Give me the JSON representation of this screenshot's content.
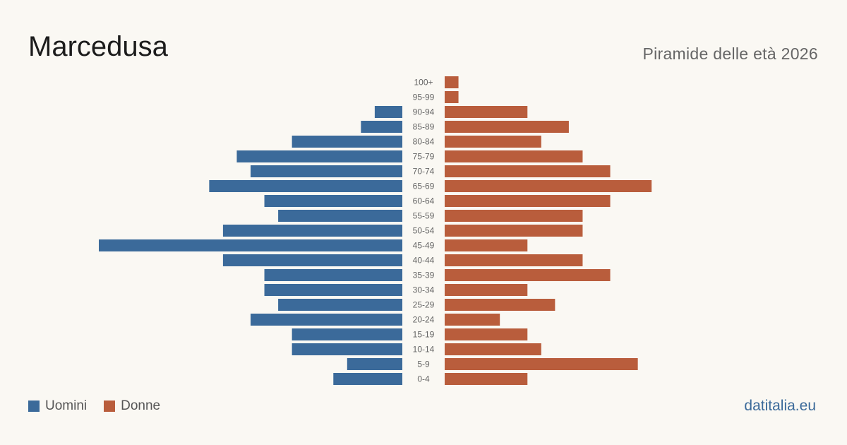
{
  "header": {
    "title": "Marcedusa",
    "subtitle": "Piramide delle età 2026"
  },
  "legend": {
    "male_label": "Uomini",
    "female_label": "Donne"
  },
  "footer": {
    "brand": "datitalia.eu"
  },
  "colors": {
    "male": "#3b6a9a",
    "female": "#b95d3c",
    "background": "#faf8f3"
  },
  "chart_data": {
    "type": "bar",
    "orientation": "horizontal-pyramid",
    "categories": [
      "100+",
      "95-99",
      "90-94",
      "85-89",
      "80-84",
      "75-79",
      "70-74",
      "65-69",
      "60-64",
      "55-59",
      "50-54",
      "45-49",
      "40-44",
      "35-39",
      "30-34",
      "25-29",
      "20-24",
      "15-19",
      "10-14",
      "5-9",
      "0-4"
    ],
    "series": [
      {
        "name": "Uomini",
        "values": [
          0,
          0,
          2,
          3,
          8,
          12,
          11,
          14,
          10,
          9,
          13,
          22,
          13,
          10,
          10,
          9,
          11,
          8,
          8,
          4,
          5
        ]
      },
      {
        "name": "Donne",
        "values": [
          1,
          1,
          6,
          9,
          7,
          10,
          12,
          15,
          12,
          10,
          10,
          6,
          10,
          12,
          6,
          8,
          4,
          6,
          7,
          14,
          6
        ]
      }
    ],
    "xlim": [
      0,
      22
    ],
    "grid": false,
    "legend_position": "bottom-left"
  }
}
